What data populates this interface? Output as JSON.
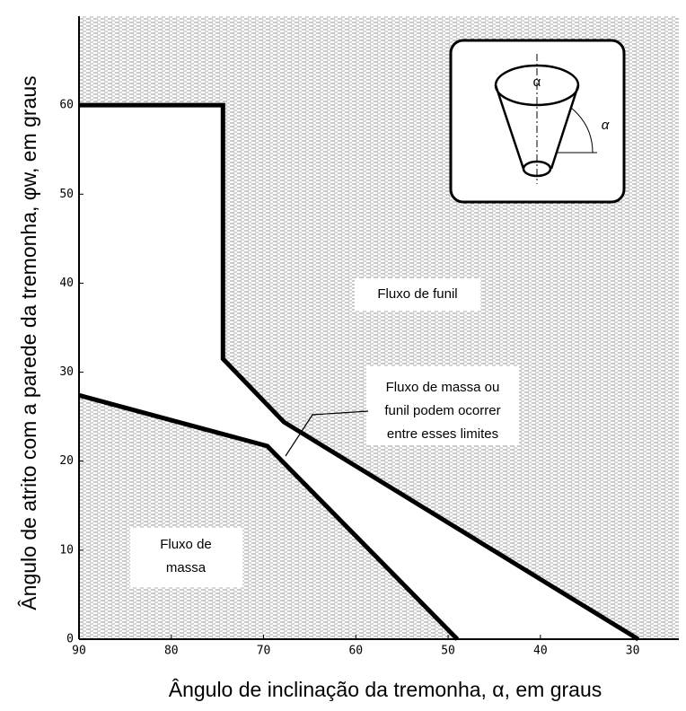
{
  "chart_data": {
    "type": "line",
    "xlabel": "Ângulo de inclinação da tremonha, α, em graus",
    "ylabel": "Ângulo de atrito com a parede da tremonha, φw, em graus",
    "xlim": [
      90,
      25
    ],
    "ylim": [
      0,
      70
    ],
    "xticks": [
      90,
      80,
      70,
      60,
      50,
      40,
      30
    ],
    "yticks": [
      0,
      10,
      20,
      30,
      40,
      50,
      60
    ],
    "series": [
      {
        "color": "#000000",
        "x": [
          90,
          69.6,
          49
        ],
        "values": [
          27.4,
          21.7,
          0
        ]
      },
      {
        "color": "#000000",
        "x": [
          90,
          74.4,
          74.4,
          67.8,
          29.4
        ],
        "values": [
          60,
          60,
          31.5,
          24.4,
          0
        ]
      }
    ],
    "annotations": {
      "funnel": "Fluxo de funil",
      "between": [
        "Fluxo de massa ou",
        "funil podem ocorrer",
        "entre esses limites"
      ],
      "mass": [
        "Fluxo de",
        "massa"
      ],
      "inset_alpha_top": "α",
      "inset_alpha_side": "α"
    }
  }
}
